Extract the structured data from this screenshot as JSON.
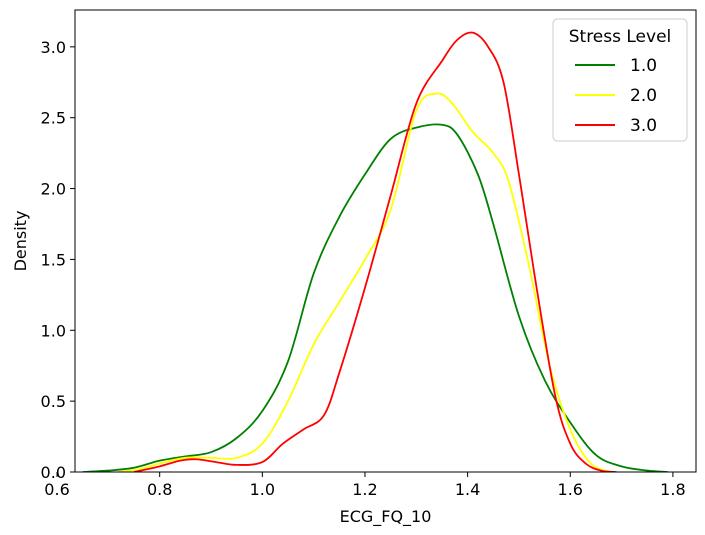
{
  "chart_data": {
    "type": "line",
    "xlabel": "ECG_FQ_10",
    "ylabel": "Density",
    "xlim": [
      0.635,
      1.845
    ],
    "ylim": [
      0.0,
      3.26
    ],
    "xticks": [
      0.6,
      0.8,
      1.0,
      1.2,
      1.4,
      1.6,
      1.8
    ],
    "xtick_labels": [
      "0.6",
      "0.8",
      "1.0",
      "1.2",
      "1.4",
      "1.6",
      "1.8"
    ],
    "yticks": [
      0.0,
      0.5,
      1.0,
      1.5,
      2.0,
      2.5,
      3.0
    ],
    "ytick_labels": [
      "0.0",
      "0.5",
      "1.0",
      "1.5",
      "2.0",
      "2.5",
      "3.0"
    ],
    "grid": false,
    "legend": {
      "title": "Stress Level",
      "placement": "top-right"
    },
    "series": [
      {
        "name": "1.0",
        "color": "#008000",
        "x": [
          0.65,
          0.7,
          0.75,
          0.8,
          0.85,
          0.9,
          0.95,
          1.0,
          1.05,
          1.1,
          1.15,
          1.2,
          1.25,
          1.3,
          1.35,
          1.38,
          1.42,
          1.45,
          1.5,
          1.55,
          1.6,
          1.65,
          1.7,
          1.75,
          1.79
        ],
        "y": [
          0.0,
          0.01,
          0.03,
          0.08,
          0.11,
          0.14,
          0.24,
          0.43,
          0.78,
          1.4,
          1.8,
          2.1,
          2.35,
          2.43,
          2.45,
          2.38,
          2.1,
          1.75,
          1.1,
          0.65,
          0.35,
          0.12,
          0.04,
          0.01,
          0.0
        ]
      },
      {
        "name": "2.0",
        "color": "#ffff00",
        "x": [
          0.72,
          0.76,
          0.8,
          0.85,
          0.9,
          0.95,
          1.0,
          1.05,
          1.1,
          1.15,
          1.2,
          1.25,
          1.3,
          1.34,
          1.37,
          1.41,
          1.45,
          1.48,
          1.52,
          1.56,
          1.6,
          1.64,
          1.68
        ],
        "y": [
          0.0,
          0.02,
          0.06,
          0.1,
          0.1,
          0.1,
          0.2,
          0.5,
          0.9,
          1.2,
          1.5,
          1.85,
          2.55,
          2.67,
          2.6,
          2.4,
          2.25,
          2.05,
          1.45,
          0.75,
          0.3,
          0.06,
          0.0
        ]
      },
      {
        "name": "3.0",
        "color": "#ff0000",
        "x": [
          0.75,
          0.8,
          0.84,
          0.87,
          0.91,
          0.95,
          1.0,
          1.04,
          1.08,
          1.12,
          1.15,
          1.2,
          1.25,
          1.3,
          1.35,
          1.38,
          1.41,
          1.44,
          1.47,
          1.5,
          1.53,
          1.57,
          1.6,
          1.63,
          1.66,
          1.69
        ],
        "y": [
          0.0,
          0.04,
          0.08,
          0.09,
          0.07,
          0.05,
          0.07,
          0.2,
          0.3,
          0.4,
          0.7,
          1.3,
          1.95,
          2.6,
          2.9,
          3.05,
          3.1,
          3.0,
          2.75,
          2.1,
          1.4,
          0.55,
          0.2,
          0.06,
          0.01,
          0.0
        ]
      }
    ]
  }
}
